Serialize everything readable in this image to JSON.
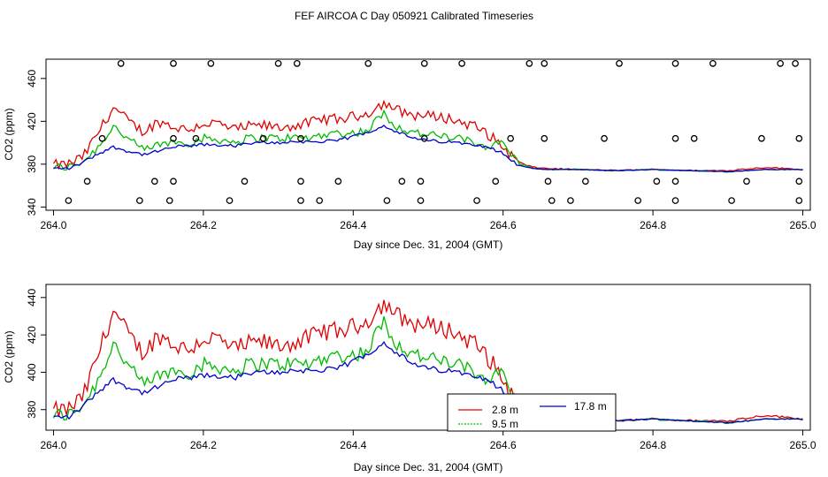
{
  "figure": {
    "title": "FEF AIRCOA C  Day 050921  Calibrated Timeseries"
  },
  "chart_data": [
    {
      "type": "line",
      "panel": "top",
      "xlabel": "Day since Dec. 31, 2004 (GMT)",
      "ylabel": "CO2 (ppm)",
      "xlim": [
        263.99,
        265.01
      ],
      "ylim": [
        337,
        478
      ],
      "xticks": [
        264.0,
        264.2,
        264.4,
        264.6,
        264.8,
        265.0
      ],
      "xtick_labels": [
        "264.0",
        "264.2",
        "264.4",
        "264.6",
        "264.8",
        "265.0"
      ],
      "yticks": [
        340,
        380,
        420,
        460
      ],
      "ytick_labels": [
        "340",
        "380",
        "420",
        "460"
      ],
      "series": [
        {
          "name": "2.8 m",
          "color": "#e00000"
        },
        {
          "name": "9.5 m",
          "color": "#00bb00"
        },
        {
          "name": "17.8 m",
          "color": "#0000cc"
        }
      ],
      "calibration_markers": {
        "symbol": "open-circle",
        "rows": [
          {
            "y": 474,
            "x": [
              264.09,
              264.16,
              264.21,
              264.3,
              264.325,
              264.42,
              264.495,
              264.545,
              264.635,
              264.655,
              264.755,
              264.83,
              264.88,
              264.97,
              264.99
            ]
          },
          {
            "y": 404,
            "x": [
              264.065,
              264.16,
              264.19,
              264.28,
              264.33,
              264.495,
              264.61,
              264.655,
              264.735,
              264.83,
              264.855,
              264.945,
              264.995
            ]
          },
          {
            "y": 364,
            "x": [
              264.045,
              264.135,
              264.16,
              264.255,
              264.33,
              264.38,
              264.465,
              264.49,
              264.59,
              264.66,
              264.71,
              264.805,
              264.83,
              264.925,
              264.995
            ]
          },
          {
            "y": 346,
            "x": [
              264.02,
              264.115,
              264.155,
              264.235,
              264.33,
              264.355,
              264.445,
              264.49,
              264.565,
              264.665,
              264.69,
              264.78,
              264.83,
              264.905,
              264.995
            ]
          }
        ]
      }
    },
    {
      "type": "line",
      "panel": "bottom",
      "xlabel": "Day since Dec. 31, 2004 (GMT)",
      "ylabel": "CO2 (ppm)",
      "xlim": [
        263.99,
        265.01
      ],
      "ylim": [
        369,
        447
      ],
      "xticks": [
        264.0,
        264.2,
        264.4,
        264.6,
        264.8,
        265.0
      ],
      "xtick_labels": [
        "264.0",
        "264.2",
        "264.4",
        "264.6",
        "264.8",
        "265.0"
      ],
      "yticks": [
        380,
        400,
        420,
        440
      ],
      "ytick_labels": [
        "380",
        "400",
        "420",
        "440"
      ],
      "legend": {
        "placement": "bottom-center",
        "entries": [
          {
            "label": "2.8 m",
            "color": "#e00000",
            "style": "solid"
          },
          {
            "label": "9.5 m",
            "color": "#00bb00",
            "style": "dotted"
          },
          {
            "label": "17.8 m",
            "color": "#0000cc",
            "style": "solid"
          }
        ]
      }
    }
  ],
  "series_anchors": {
    "x": [
      264.0,
      264.02,
      264.04,
      264.06,
      264.08,
      264.1,
      264.12,
      264.14,
      264.16,
      264.18,
      264.2,
      264.22,
      264.24,
      264.26,
      264.28,
      264.3,
      264.32,
      264.34,
      264.36,
      264.38,
      264.4,
      264.42,
      264.44,
      264.46,
      264.48,
      264.5,
      264.52,
      264.54,
      264.56,
      264.58,
      264.6,
      264.62,
      264.64,
      264.66,
      264.7,
      264.75,
      264.8,
      264.85,
      264.9,
      264.95,
      265.0
    ],
    "r2_8m": [
      379,
      380,
      387,
      410,
      433,
      420,
      410,
      420,
      415,
      412,
      418,
      418,
      412,
      415,
      416,
      414,
      416,
      418,
      422,
      422,
      424,
      428,
      437,
      430,
      426,
      425,
      424,
      420,
      416,
      408,
      396,
      382,
      377,
      376,
      375,
      374,
      375,
      374,
      374,
      377,
      375
    ],
    "g9_5m": [
      377,
      377,
      383,
      396,
      416,
      403,
      393,
      398,
      401,
      400,
      404,
      403,
      401,
      404,
      405,
      404,
      405,
      404,
      408,
      409,
      409,
      412,
      428,
      414,
      410,
      407,
      406,
      404,
      400,
      397,
      400,
      381,
      376,
      375,
      375,
      374,
      375,
      374,
      373,
      375,
      375
    ],
    "b17_8m": [
      376,
      376,
      382,
      390,
      396,
      392,
      389,
      392,
      396,
      397,
      398,
      398,
      397,
      399,
      400,
      400,
      401,
      401,
      401,
      402,
      406,
      410,
      416,
      410,
      404,
      402,
      401,
      400,
      399,
      396,
      390,
      379,
      376,
      375,
      375,
      374,
      375,
      374,
      373,
      375,
      375
    ]
  }
}
